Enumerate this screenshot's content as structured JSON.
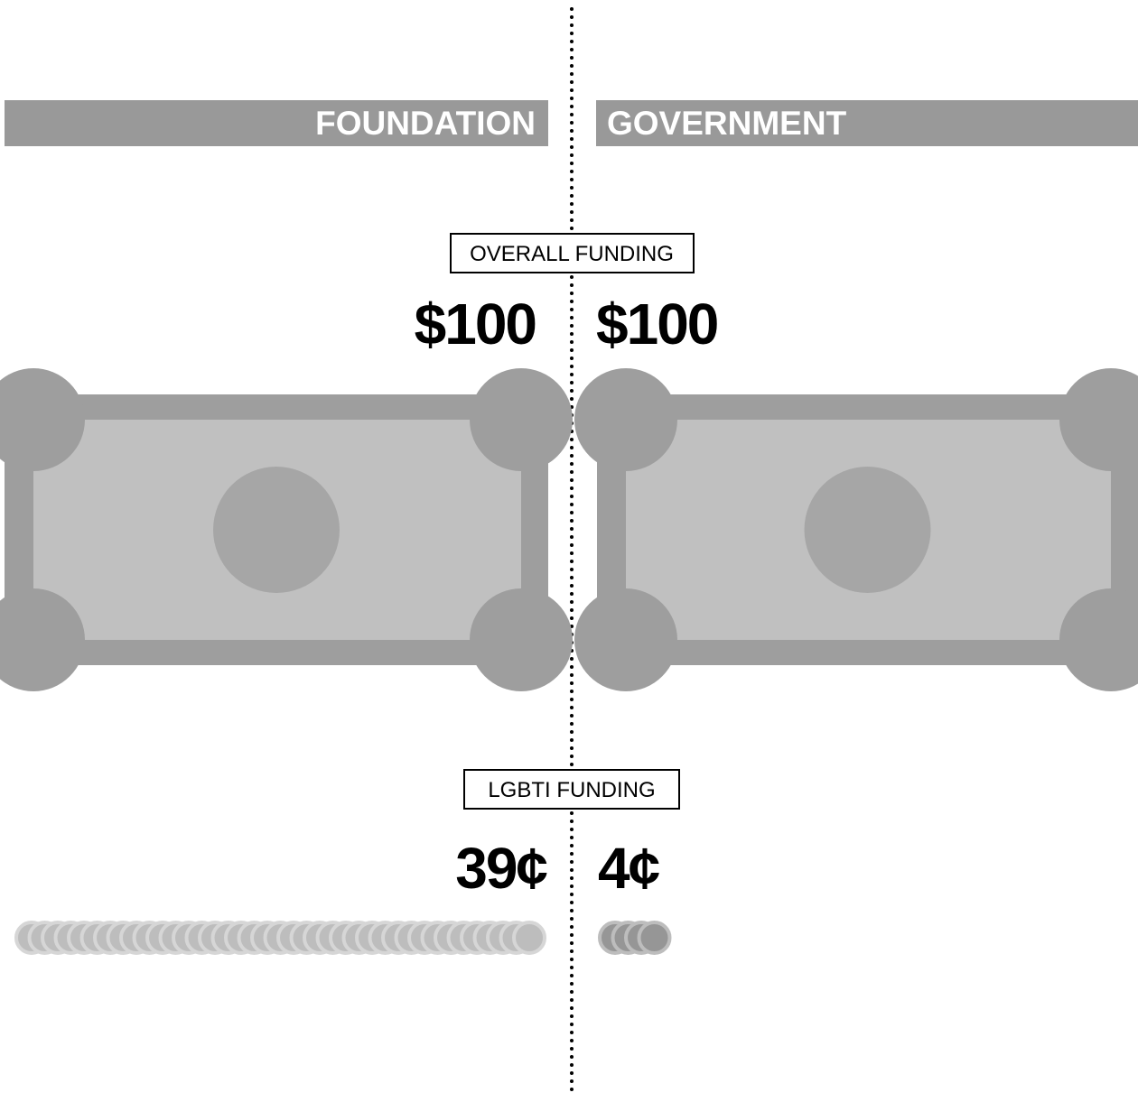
{
  "columns": [
    {
      "title": "FOUNDATION"
    },
    {
      "title": "GOVERNMENT"
    }
  ],
  "overall": {
    "label": "OVERALL FUNDING",
    "values": [
      {
        "value": 100,
        "label": "$100"
      },
      {
        "value": 100,
        "label": "$100"
      }
    ]
  },
  "lgbti": {
    "label": "LGBTI FUNDING",
    "values": [
      {
        "value": 39,
        "label": "39¢"
      },
      {
        "value": 4,
        "label": "4¢"
      }
    ]
  }
}
